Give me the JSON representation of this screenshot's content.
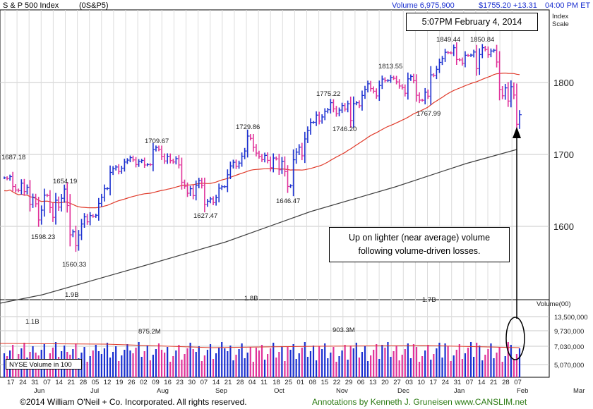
{
  "header": {
    "title": "S & P 500 Index",
    "symbol": "(0S&P5)",
    "volume": "Volume 6,975,900",
    "price_change": "$1755.20 +13.31",
    "time": "04:00 PM ET",
    "scale_label_1": "Index",
    "scale_label_2": "Scale",
    "volume_scale_label": "Volume(00)"
  },
  "date_box": "5:07PM February 4, 2014",
  "note_box": {
    "line1": "Up on lighter (near average) volume",
    "line2": "following volume-driven losses."
  },
  "nyse_label": "NYSE Volume in 100",
  "footer": {
    "left": "©2014 William O'Neil + Co. Incorporated. All rights reserved.",
    "right": "Annotations by Kenneth J. Gruneisen www.CANSLIM.net"
  },
  "colors": {
    "up": "#1a2fd0",
    "down": "#e0329a",
    "ma50": "#e03a2a",
    "ma200": "#404040",
    "grid": "#c8c8c8",
    "annotation": "#2a7a12"
  },
  "chart_data": {
    "type": "ohlc",
    "price_axis": {
      "ticks": [
        1600,
        1700,
        1800
      ],
      "range": [
        1506,
        1906
      ]
    },
    "volume_axis": {
      "ticks": [
        "13,500,000",
        "9,730,000",
        "7,030,000",
        "5,070,000"
      ]
    },
    "x_ticks": [
      "17",
      "24",
      "31",
      "07",
      "14",
      "21",
      "28",
      "05",
      "12",
      "19",
      "26",
      "02",
      "09",
      "16",
      "23",
      "30",
      "07",
      "14",
      "21",
      "28",
      "04",
      "11",
      "18",
      "25",
      "01",
      "08",
      "15",
      "22",
      "29",
      "06",
      "13",
      "20",
      "27",
      "03",
      "10",
      "17",
      "24",
      "31",
      "07",
      "14",
      "21",
      "28",
      "07"
    ],
    "month_labels": [
      "Jun",
      "Jul",
      "Aug",
      "Sep",
      "Oct",
      "Nov",
      "Dec",
      "Jan",
      "Feb",
      "Mar"
    ],
    "price_labels": [
      "1687.18",
      "1654.19",
      "1598.23",
      "1560.33",
      "1709.67",
      "1627.47",
      "1729.86",
      "1646.47",
      "1775.22",
      "1746.20",
      "1813.55",
      "1767.99",
      "1849.44",
      "1850.84"
    ],
    "volume_labels": [
      "1.1B",
      "1.9B",
      "875.2M",
      "1.8B",
      "903.3M",
      "1.7B"
    ],
    "price_points": [
      {
        "date": "May 17",
        "close": 1667.47
      },
      {
        "date": "May 20",
        "close": 1666.29
      },
      {
        "date": "May 21",
        "close": 1669.16
      },
      {
        "date": "May 22",
        "close": 1655.35
      },
      {
        "date": "May 23",
        "close": 1650.51
      },
      {
        "date": "May 24",
        "close": 1649.6
      },
      {
        "date": "May 28",
        "close": 1660.06
      },
      {
        "date": "May 29",
        "close": 1648.36
      },
      {
        "date": "May 30",
        "close": 1654.41
      },
      {
        "date": "May 31",
        "close": 1630.74
      },
      {
        "date": "Jun 3",
        "close": 1640.42
      },
      {
        "date": "Jun 4",
        "close": 1631.38
      },
      {
        "date": "Jun 5",
        "close": 1608.9
      },
      {
        "date": "Jun 6",
        "close": 1622.56
      },
      {
        "date": "Jun 7",
        "close": 1643.38
      },
      {
        "date": "Jun 10",
        "close": 1642.81
      },
      {
        "date": "Jun 11",
        "close": 1626.13
      },
      {
        "date": "Jun 12",
        "close": 1612.52
      },
      {
        "date": "Jun 13",
        "close": 1636.36
      },
      {
        "date": "Jun 14",
        "close": 1626.73
      },
      {
        "date": "Jun 17",
        "close": 1639.04
      },
      {
        "date": "Jun 18",
        "close": 1651.81
      },
      {
        "date": "Jun 19",
        "close": 1628.93
      },
      {
        "date": "Jun 20",
        "close": 1588.19
      },
      {
        "date": "Jun 21",
        "close": 1592.43
      },
      {
        "date": "Jun 24",
        "close": 1573.09
      },
      {
        "date": "Jun 25",
        "close": 1588.03
      },
      {
        "date": "Jun 26",
        "close": 1603.26
      },
      {
        "date": "Jun 27",
        "close": 1613.2
      },
      {
        "date": "Jun 28",
        "close": 1606.28
      },
      {
        "date": "Jul 1",
        "close": 1614.96
      },
      {
        "date": "Jul 2",
        "close": 1614.08
      },
      {
        "date": "Jul 3",
        "close": 1615.41
      },
      {
        "date": "Jul 5",
        "close": 1631.89
      },
      {
        "date": "Jul 8",
        "close": 1640.46
      },
      {
        "date": "Jul 9",
        "close": 1652.32
      },
      {
        "date": "Jul 10",
        "close": 1652.62
      },
      {
        "date": "Jul 11",
        "close": 1675.02
      },
      {
        "date": "Jul 12",
        "close": 1680.19
      },
      {
        "date": "Jul 15",
        "close": 1682.5
      },
      {
        "date": "Jul 16",
        "close": 1676.26
      },
      {
        "date": "Jul 17",
        "close": 1680.91
      },
      {
        "date": "Jul 18",
        "close": 1689.37
      },
      {
        "date": "Jul 19",
        "close": 1692.09
      },
      {
        "date": "Jul 22",
        "close": 1695.53
      },
      {
        "date": "Jul 23",
        "close": 1692.39
      },
      {
        "date": "Jul 24",
        "close": 1685.94
      },
      {
        "date": "Jul 25",
        "close": 1690.25
      },
      {
        "date": "Jul 26",
        "close": 1691.65
      },
      {
        "date": "Jul 29",
        "close": 1685.33
      },
      {
        "date": "Jul 30",
        "close": 1685.96
      },
      {
        "date": "Jul 31",
        "close": 1685.73
      },
      {
        "date": "Aug 1",
        "close": 1706.87
      },
      {
        "date": "Aug 2",
        "close": 1709.67
      },
      {
        "date": "Aug 5",
        "close": 1707.14
      },
      {
        "date": "Aug 6",
        "close": 1697.37
      },
      {
        "date": "Aug 7",
        "close": 1690.91
      },
      {
        "date": "Aug 8",
        "close": 1697.48
      },
      {
        "date": "Aug 9",
        "close": 1691.42
      },
      {
        "date": "Aug 12",
        "close": 1689.47
      },
      {
        "date": "Aug 13",
        "close": 1694.16
      },
      {
        "date": "Aug 14",
        "close": 1685.39
      },
      {
        "date": "Aug 15",
        "close": 1661.32
      },
      {
        "date": "Aug 16",
        "close": 1655.83
      },
      {
        "date": "Aug 19",
        "close": 1646.06
      },
      {
        "date": "Aug 20",
        "close": 1652.35
      },
      {
        "date": "Aug 21",
        "close": 1642.8
      },
      {
        "date": "Aug 22",
        "close": 1656.96
      },
      {
        "date": "Aug 23",
        "close": 1663.5
      },
      {
        "date": "Aug 26",
        "close": 1656.78
      },
      {
        "date": "Aug 27",
        "close": 1630.48
      },
      {
        "date": "Aug 28",
        "close": 1634.96
      },
      {
        "date": "Aug 29",
        "close": 1638.17
      },
      {
        "date": "Aug 30",
        "close": 1632.97
      },
      {
        "date": "Sep 3",
        "close": 1639.77
      },
      {
        "date": "Sep 4",
        "close": 1653.08
      },
      {
        "date": "Sep 5",
        "close": 1655.08
      },
      {
        "date": "Sep 6",
        "close": 1655.17
      },
      {
        "date": "Sep 9",
        "close": 1671.71
      },
      {
        "date": "Sep 10",
        "close": 1683.99
      },
      {
        "date": "Sep 11",
        "close": 1689.13
      },
      {
        "date": "Sep 12",
        "close": 1683.42
      },
      {
        "date": "Sep 13",
        "close": 1687.99
      },
      {
        "date": "Sep 16",
        "close": 1697.6
      },
      {
        "date": "Sep 17",
        "close": 1704.76
      },
      {
        "date": "Sep 18",
        "close": 1725.52
      },
      {
        "date": "Sep 19",
        "close": 1722.34
      },
      {
        "date": "Sep 20",
        "close": 1709.91
      },
      {
        "date": "Sep 23",
        "close": 1701.84
      },
      {
        "date": "Sep 24",
        "close": 1697.42
      },
      {
        "date": "Sep 25",
        "close": 1692.77
      },
      {
        "date": "Sep 26",
        "close": 1698.67
      },
      {
        "date": "Sep 27",
        "close": 1691.75
      },
      {
        "date": "Sep 30",
        "close": 1681.55
      },
      {
        "date": "Oct 1",
        "close": 1695.0
      },
      {
        "date": "Oct 2",
        "close": 1693.87
      },
      {
        "date": "Oct 3",
        "close": 1678.66
      },
      {
        "date": "Oct 4",
        "close": 1690.5
      },
      {
        "date": "Oct 7",
        "close": 1676.12
      },
      {
        "date": "Oct 8",
        "close": 1655.45
      },
      {
        "date": "Oct 9",
        "close": 1656.4
      },
      {
        "date": "Oct 10",
        "close": 1692.56
      },
      {
        "date": "Oct 11",
        "close": 1703.2
      },
      {
        "date": "Oct 14",
        "close": 1710.14
      },
      {
        "date": "Oct 15",
        "close": 1698.06
      },
      {
        "date": "Oct 16",
        "close": 1721.54
      },
      {
        "date": "Oct 17",
        "close": 1733.15
      },
      {
        "date": "Oct 18",
        "close": 1744.5
      },
      {
        "date": "Oct 21",
        "close": 1744.66
      },
      {
        "date": "Oct 22",
        "close": 1754.67
      },
      {
        "date": "Oct 23",
        "close": 1746.38
      },
      {
        "date": "Oct 24",
        "close": 1752.07
      },
      {
        "date": "Oct 25",
        "close": 1759.77
      },
      {
        "date": "Oct 28",
        "close": 1762.11
      },
      {
        "date": "Oct 29",
        "close": 1771.95
      },
      {
        "date": "Oct 30",
        "close": 1763.31
      },
      {
        "date": "Oct 31",
        "close": 1756.54
      },
      {
        "date": "Nov 1",
        "close": 1761.64
      },
      {
        "date": "Nov 4",
        "close": 1767.93
      },
      {
        "date": "Nov 5",
        "close": 1762.97
      },
      {
        "date": "Nov 6",
        "close": 1770.49
      },
      {
        "date": "Nov 7",
        "close": 1747.15
      },
      {
        "date": "Nov 8",
        "close": 1770.61
      },
      {
        "date": "Nov 11",
        "close": 1771.89
      },
      {
        "date": "Nov 12",
        "close": 1767.69
      },
      {
        "date": "Nov 13",
        "close": 1782.0
      },
      {
        "date": "Nov 14",
        "close": 1790.62
      },
      {
        "date": "Nov 15",
        "close": 1798.18
      },
      {
        "date": "Nov 18",
        "close": 1791.53
      },
      {
        "date": "Nov 19",
        "close": 1787.87
      },
      {
        "date": "Nov 20",
        "close": 1781.37
      },
      {
        "date": "Nov 21",
        "close": 1795.85
      },
      {
        "date": "Nov 22",
        "close": 1804.76
      },
      {
        "date": "Nov 25",
        "close": 1802.48
      },
      {
        "date": "Nov 26",
        "close": 1802.75
      },
      {
        "date": "Nov 27",
        "close": 1807.23
      },
      {
        "date": "Nov 29",
        "close": 1805.81
      },
      {
        "date": "Dec 2",
        "close": 1800.9
      },
      {
        "date": "Dec 3",
        "close": 1795.15
      },
      {
        "date": "Dec 4",
        "close": 1792.81
      },
      {
        "date": "Dec 5",
        "close": 1785.03
      },
      {
        "date": "Dec 6",
        "close": 1805.09
      },
      {
        "date": "Dec 9",
        "close": 1808.37
      },
      {
        "date": "Dec 10",
        "close": 1802.62
      },
      {
        "date": "Dec 11",
        "close": 1782.22
      },
      {
        "date": "Dec 12",
        "close": 1775.5
      },
      {
        "date": "Dec 13",
        "close": 1775.32
      },
      {
        "date": "Dec 16",
        "close": 1786.54
      },
      {
        "date": "Dec 17",
        "close": 1781.0
      },
      {
        "date": "Dec 18",
        "close": 1810.65
      },
      {
        "date": "Dec 19",
        "close": 1809.6
      },
      {
        "date": "Dec 20",
        "close": 1818.32
      },
      {
        "date": "Dec 23",
        "close": 1827.99
      },
      {
        "date": "Dec 24",
        "close": 1833.32
      },
      {
        "date": "Dec 26",
        "close": 1842.02
      },
      {
        "date": "Dec 27",
        "close": 1841.4
      },
      {
        "date": "Dec 30",
        "close": 1841.07
      },
      {
        "date": "Dec 31",
        "close": 1848.36
      },
      {
        "date": "Jan 2",
        "close": 1831.98
      },
      {
        "date": "Jan 3",
        "close": 1831.37
      },
      {
        "date": "Jan 6",
        "close": 1826.77
      },
      {
        "date": "Jan 7",
        "close": 1837.88
      },
      {
        "date": "Jan 8",
        "close": 1837.49
      },
      {
        "date": "Jan 9",
        "close": 1838.13
      },
      {
        "date": "Jan 10",
        "close": 1842.37
      },
      {
        "date": "Jan 13",
        "close": 1819.2
      },
      {
        "date": "Jan 14",
        "close": 1838.88
      },
      {
        "date": "Jan 15",
        "close": 1848.38
      },
      {
        "date": "Jan 16",
        "close": 1845.89
      },
      {
        "date": "Jan 17",
        "close": 1838.7
      },
      {
        "date": "Jan 21",
        "close": 1843.8
      },
      {
        "date": "Jan 22",
        "close": 1844.86
      },
      {
        "date": "Jan 23",
        "close": 1828.46
      },
      {
        "date": "Jan 24",
        "close": 1790.29
      },
      {
        "date": "Jan 27",
        "close": 1781.56
      },
      {
        "date": "Jan 28",
        "close": 1792.5
      },
      {
        "date": "Jan 29",
        "close": 1774.2
      },
      {
        "date": "Jan 30",
        "close": 1794.19
      },
      {
        "date": "Jan 31",
        "close": 1782.59
      },
      {
        "date": "Feb 3",
        "close": 1741.89
      },
      {
        "date": "Feb 4",
        "close": 1755.2
      }
    ],
    "ma50": "50-day moving average",
    "ma200": "200-day moving average"
  }
}
